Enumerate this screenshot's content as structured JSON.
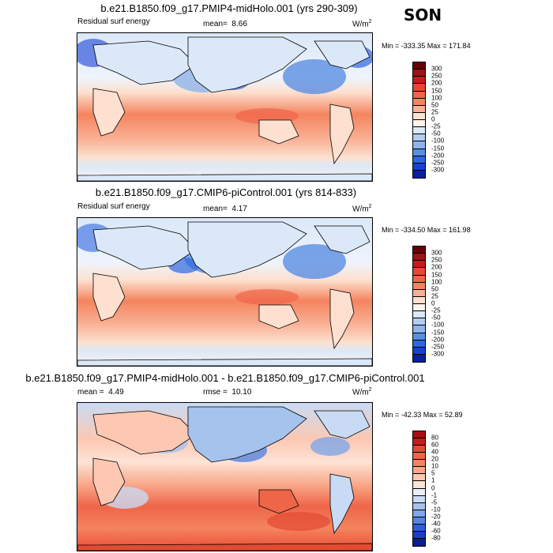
{
  "season": "SON",
  "panels": [
    {
      "title": "b.e21.B1850.f09_g17.PMIP4-midHolo.001 (yrs 290-309)",
      "variable": "Residual surf energy",
      "stat_label": "mean=",
      "stat_value": "8.66",
      "units": "W/m",
      "units_sup": "2",
      "minmax": "Min = -333.35 Max = 171.84",
      "colorbar": {
        "labels": [
          "300",
          "250",
          "200",
          "150",
          "100",
          "50",
          "25",
          "0",
          "-25",
          "-50",
          "-100",
          "-150",
          "-200",
          "-250",
          "-300"
        ],
        "colors": [
          "#67000d",
          "#a50f15",
          "#cb181d",
          "#e34a33",
          "#ef6548",
          "#f4845f",
          "#f9b196",
          "#fde0cf",
          "#fff3ea",
          "#dbe8f8",
          "#b2cdef",
          "#8fb4ea",
          "#5a8ee2",
          "#2f66e0",
          "#1740d6",
          "#08209a"
        ]
      }
    },
    {
      "title": "b.e21.B1850.f09_g17.CMIP6-piControl.001 (yrs 814-833)",
      "variable": "Residual surf energy",
      "stat_label": "mean=",
      "stat_value": "4.17",
      "units": "W/m",
      "units_sup": "2",
      "minmax": "Min = -334.50 Max = 161.98",
      "colorbar": {
        "labels": [
          "300",
          "250",
          "200",
          "150",
          "100",
          "50",
          "25",
          "0",
          "-25",
          "-50",
          "-100",
          "-150",
          "-200",
          "-250",
          "-300"
        ],
        "colors": [
          "#67000d",
          "#a50f15",
          "#cb181d",
          "#e34a33",
          "#ef6548",
          "#f4845f",
          "#f9b196",
          "#fde0cf",
          "#fff3ea",
          "#dbe8f8",
          "#b2cdef",
          "#8fb4ea",
          "#5a8ee2",
          "#2f66e0",
          "#1740d6",
          "#08209a"
        ]
      }
    },
    {
      "title": "b.e21.B1850.f09_g17.PMIP4-midHolo.001 - b.e21.B1850.f09_g17.CMIP6-piControl.001",
      "stat_label": "mean =",
      "stat_value": "4.49",
      "rmse_label": "rmse =",
      "rmse_value": "10.10",
      "units": "W/m",
      "units_sup": "2",
      "minmax": "Min = -42.33 Max = 52.89",
      "colorbar": {
        "labels": [
          "80",
          "60",
          "40",
          "20",
          "10",
          "5",
          "1",
          "0",
          "-1",
          "-5",
          "-10",
          "-20",
          "-40",
          "-60",
          "-80"
        ],
        "colors": [
          "#a50f15",
          "#cb181d",
          "#e34a33",
          "#ef6548",
          "#f4845f",
          "#f9a98a",
          "#fcc8b2",
          "#fde3d6",
          "#e9f0fb",
          "#c9dbf4",
          "#a6c3ee",
          "#7fa6e7",
          "#5585e0",
          "#2f5fd8",
          "#1a3ec8",
          "#0a1e8c"
        ]
      }
    }
  ]
}
